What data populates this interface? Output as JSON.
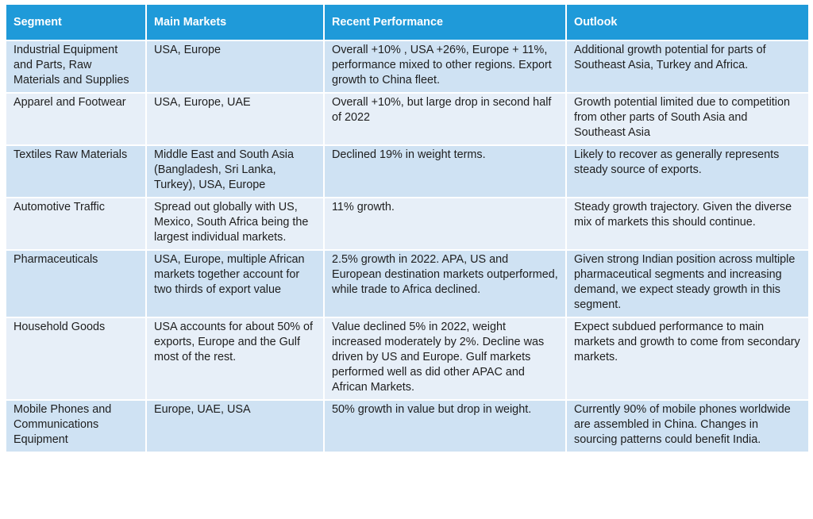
{
  "table": {
    "headers": [
      "Segment",
      "Main Markets",
      "Recent Performance",
      "Outlook"
    ],
    "rows": [
      {
        "segment": "Industrial Equipment and Parts, Raw Materials and Supplies",
        "markets": "USA, Europe",
        "performance": "Overall +10% , USA +26%, Europe + 11%, performance mixed to other regions. Export growth to China fleet.",
        "outlook": "Additional growth potential for parts of Southeast Asia, Turkey and Africa."
      },
      {
        "segment": "Apparel and Footwear",
        "markets": "USA, Europe, UAE",
        "performance": "Overall +10%, but large drop in second half of 2022",
        "outlook": "Growth potential limited due to competition from other parts of South Asia and Southeast Asia"
      },
      {
        "segment": "Textiles Raw Materials",
        "markets": "Middle East and South Asia (Bangladesh, Sri Lanka, Turkey), USA, Europe",
        "performance": "Declined 19% in weight terms.",
        "outlook": "Likely to recover as generally represents steady source of exports."
      },
      {
        "segment": "Automotive Traffic",
        "markets": "Spread out globally with US, Mexico, South Africa being the largest individual markets.",
        "performance": "11% growth.",
        "outlook": "Steady growth trajectory. Given the diverse mix of markets this should continue."
      },
      {
        "segment": "Pharmaceuticals",
        "markets": "USA, Europe, multiple African markets together account for two thirds of export value",
        "performance": "2.5% growth in 2022. APA, US and European destination markets outperformed, while trade to Africa declined.",
        "outlook": "Given strong Indian position across multiple pharmaceutical segments and increasing demand, we expect steady growth in this segment."
      },
      {
        "segment": "Household Goods",
        "markets": "USA accounts for about 50% of exports, Europe and the Gulf most of the rest.",
        "performance": "Value declined 5% in 2022, weight increased moderately by 2%. Decline was driven by US and Europe. Gulf markets performed well as did other APAC and African Markets.",
        "outlook": "Expect subdued performance to main markets and growth to come from secondary markets."
      },
      {
        "segment": "Mobile Phones and Communications Equipment",
        "markets": "Europe, UAE, USA",
        "performance": "50% growth in value but drop in weight.",
        "outlook": "Currently 90% of mobile phones worldwide are assembled in China. Changes in sourcing patterns could benefit India."
      }
    ]
  },
  "colors": {
    "header_bg": "#1f9ad9",
    "header_text": "#ffffff",
    "row_odd_bg": "#cfe2f3",
    "row_even_bg": "#e7eff8",
    "body_text": "#1e1e1e"
  }
}
